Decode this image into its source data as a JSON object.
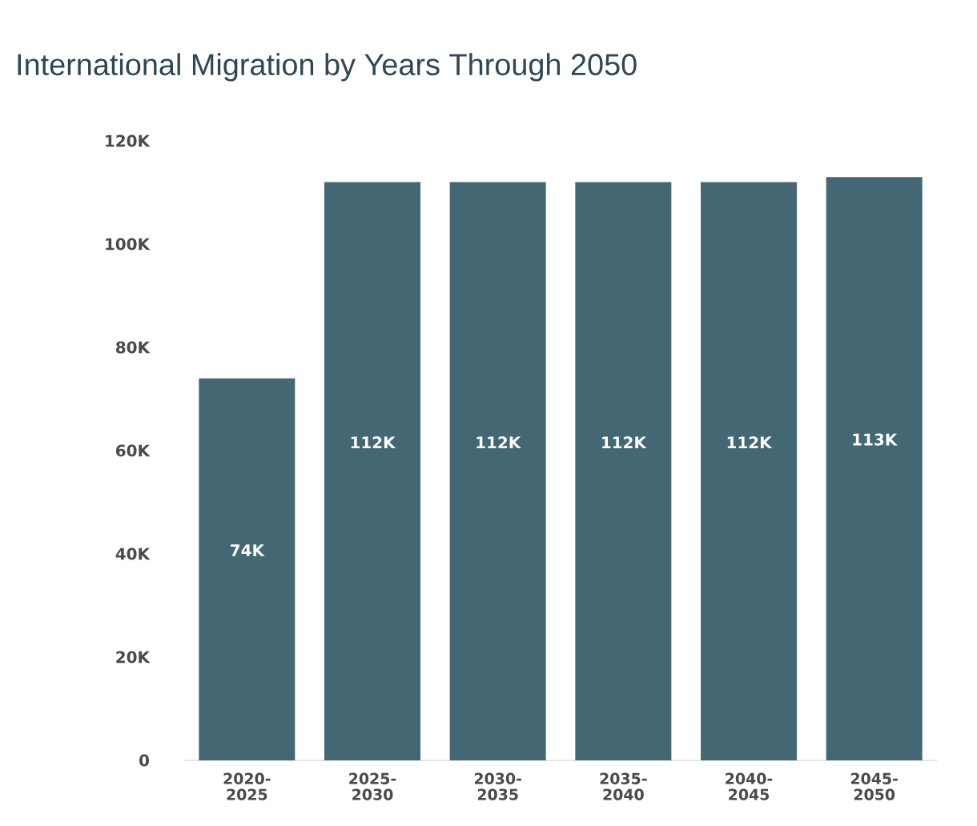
{
  "chart_data": {
    "type": "bar",
    "title": "International Migration by Years Through 2050",
    "categories": [
      "2020-2025",
      "2025-2030",
      "2030-2035",
      "2035-2040",
      "2040-2045",
      "2045-2050"
    ],
    "values": [
      74,
      112,
      112,
      112,
      112,
      113
    ],
    "value_labels": [
      "74K",
      "112K",
      "112K",
      "112K",
      "112K",
      "113K"
    ],
    "color": "#436874",
    "ylim": [
      0,
      120
    ],
    "yticks": [
      0,
      {
        "value": 20,
        "label": "20K"
      },
      {
        "value": 40,
        "label": "40K"
      },
      {
        "value": 60,
        "label": "60K"
      },
      {
        "value": 80,
        "label": "80K"
      },
      {
        "value": 100,
        "label": "100K"
      },
      {
        "value": 120,
        "label": "120K"
      }
    ],
    "grid": false,
    "legend": false
  }
}
